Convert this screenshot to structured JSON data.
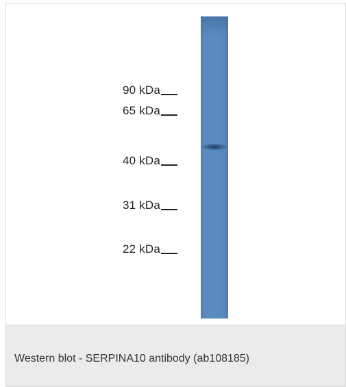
{
  "markers": [
    {
      "label": "90 kDa"
    },
    {
      "label": "65 kDa"
    },
    {
      "label": "40 kDa"
    },
    {
      "label": "31 kDa"
    },
    {
      "label": "22 kDa"
    }
  ],
  "caption": "Western blot - SERPINA10 antibody (ab108185)",
  "colors": {
    "lane": "#5b8bc1",
    "band": "#1f3d64",
    "caption_background": "#ebebeb"
  }
}
